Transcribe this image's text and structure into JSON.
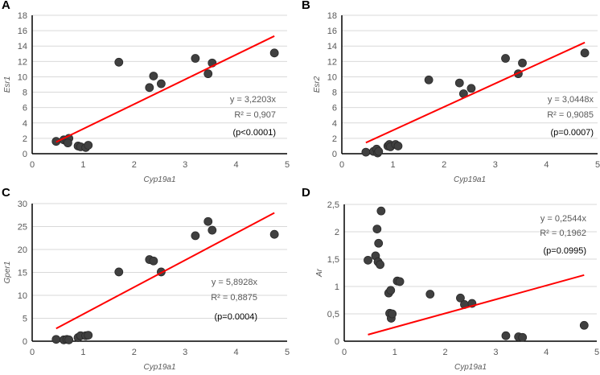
{
  "chart_data": [
    {
      "type": "scatter",
      "panel": "A",
      "xlabel": "Cyp19a1",
      "ylabel": "Esr1",
      "xlim": [
        0,
        5
      ],
      "ylim": [
        0,
        18
      ],
      "xticks": [
        "0",
        "1",
        "2",
        "3",
        "4",
        "5"
      ],
      "yticks": [
        "0",
        "2",
        "4",
        "6",
        "8",
        "10",
        "12",
        "14",
        "16",
        "18"
      ],
      "grid": true,
      "points": [
        [
          0.47,
          1.6
        ],
        [
          0.62,
          1.8
        ],
        [
          0.68,
          1.6
        ],
        [
          0.72,
          2.0
        ],
        [
          0.7,
          1.4
        ],
        [
          0.9,
          1.0
        ],
        [
          0.95,
          0.9
        ],
        [
          1.05,
          0.8
        ],
        [
          1.1,
          1.1
        ],
        [
          1.7,
          11.9
        ],
        [
          2.3,
          8.6
        ],
        [
          2.38,
          10.1
        ],
        [
          2.53,
          9.1
        ],
        [
          3.2,
          12.4
        ],
        [
          3.45,
          10.4
        ],
        [
          3.53,
          11.8
        ],
        [
          4.75,
          13.1
        ]
      ],
      "trendline": {
        "slope": 3.2203,
        "x_range": [
          0.47,
          4.75
        ],
        "color": "#ff0000"
      },
      "annotations": [
        "y = 3,2203x",
        "R² = 0,907",
        "(p<0.0001)"
      ]
    },
    {
      "type": "scatter",
      "panel": "B",
      "xlabel": "Cyp19a1",
      "ylabel": "Esr2",
      "xlim": [
        0,
        5
      ],
      "ylim": [
        0,
        18
      ],
      "xticks": [
        "0",
        "1",
        "2",
        "3",
        "4",
        "5"
      ],
      "yticks": [
        "0",
        "2",
        "4",
        "6",
        "8",
        "10",
        "12",
        "14",
        "16",
        "18"
      ],
      "grid": true,
      "points": [
        [
          0.47,
          0.2
        ],
        [
          0.62,
          0.3
        ],
        [
          0.68,
          0.6
        ],
        [
          0.7,
          0.1
        ],
        [
          0.72,
          0.3
        ],
        [
          0.9,
          1.0
        ],
        [
          0.93,
          1.2
        ],
        [
          0.95,
          0.9
        ],
        [
          1.05,
          1.2
        ],
        [
          1.1,
          1.0
        ],
        [
          1.7,
          9.6
        ],
        [
          2.3,
          9.2
        ],
        [
          2.38,
          7.8
        ],
        [
          2.53,
          8.5
        ],
        [
          3.2,
          12.4
        ],
        [
          3.45,
          10.4
        ],
        [
          3.53,
          11.8
        ],
        [
          4.75,
          13.1
        ]
      ],
      "trendline": {
        "slope": 3.0448,
        "x_range": [
          0.47,
          4.75
        ],
        "color": "#ff0000"
      },
      "annotations": [
        "y = 3,0448x",
        "R² = 0,9085",
        "(p=0.0007)"
      ]
    },
    {
      "type": "scatter",
      "panel": "C",
      "xlabel": "Cyp19a1",
      "ylabel": "Gper1",
      "xlim": [
        0,
        5
      ],
      "ylim": [
        0,
        30
      ],
      "xticks": [
        "0",
        "1",
        "2",
        "3",
        "4",
        "5"
      ],
      "yticks": [
        "0",
        "5",
        "10",
        "15",
        "20",
        "25",
        "30"
      ],
      "grid": true,
      "points": [
        [
          0.47,
          0.4
        ],
        [
          0.62,
          0.3
        ],
        [
          0.68,
          0.4
        ],
        [
          0.72,
          0.3
        ],
        [
          0.9,
          0.8
        ],
        [
          0.95,
          1.2
        ],
        [
          1.05,
          1.2
        ],
        [
          1.1,
          1.3
        ],
        [
          1.7,
          15.1
        ],
        [
          2.3,
          17.8
        ],
        [
          2.38,
          17.5
        ],
        [
          2.53,
          15.1
        ],
        [
          3.2,
          23.0
        ],
        [
          3.45,
          26.1
        ],
        [
          3.53,
          24.2
        ],
        [
          4.75,
          23.3
        ]
      ],
      "trendline": {
        "slope": 5.8928,
        "x_range": [
          0.47,
          4.75
        ],
        "color": "#ff0000"
      },
      "annotations": [
        "y = 5,8928x",
        "R² = 0,8875",
        "(p=0.0004)"
      ]
    },
    {
      "type": "scatter",
      "panel": "D",
      "xlabel": "Cyp19a1",
      "ylabel": "Ar",
      "xlim": [
        0,
        5
      ],
      "ylim": [
        0,
        2.5
      ],
      "xticks": [
        "0",
        "1",
        "2",
        "3",
        "4",
        "5"
      ],
      "yticks": [
        "0",
        "0,5",
        "1",
        "1,5",
        "2",
        "2,5"
      ],
      "grid": true,
      "points": [
        [
          0.47,
          1.48
        ],
        [
          0.62,
          1.56
        ],
        [
          0.65,
          2.05
        ],
        [
          0.67,
          1.45
        ],
        [
          0.68,
          1.79
        ],
        [
          0.71,
          1.4
        ],
        [
          0.73,
          2.38
        ],
        [
          0.88,
          0.88
        ],
        [
          0.9,
          0.51
        ],
        [
          0.92,
          0.93
        ],
        [
          0.93,
          0.42
        ],
        [
          0.95,
          0.5
        ],
        [
          1.05,
          1.1
        ],
        [
          1.1,
          1.09
        ],
        [
          1.7,
          0.86
        ],
        [
          2.3,
          0.79
        ],
        [
          2.38,
          0.67
        ],
        [
          2.53,
          0.69
        ],
        [
          3.2,
          0.1
        ],
        [
          3.45,
          0.08
        ],
        [
          3.53,
          0.07
        ],
        [
          4.75,
          0.29
        ]
      ],
      "trendline": {
        "slope": 0.2544,
        "x_range": [
          0.47,
          4.75
        ],
        "color": "#ff0000"
      },
      "annotations": [
        "y = 0,2544x",
        "R² = 0,1962",
        "(p=0.0995)"
      ]
    }
  ]
}
